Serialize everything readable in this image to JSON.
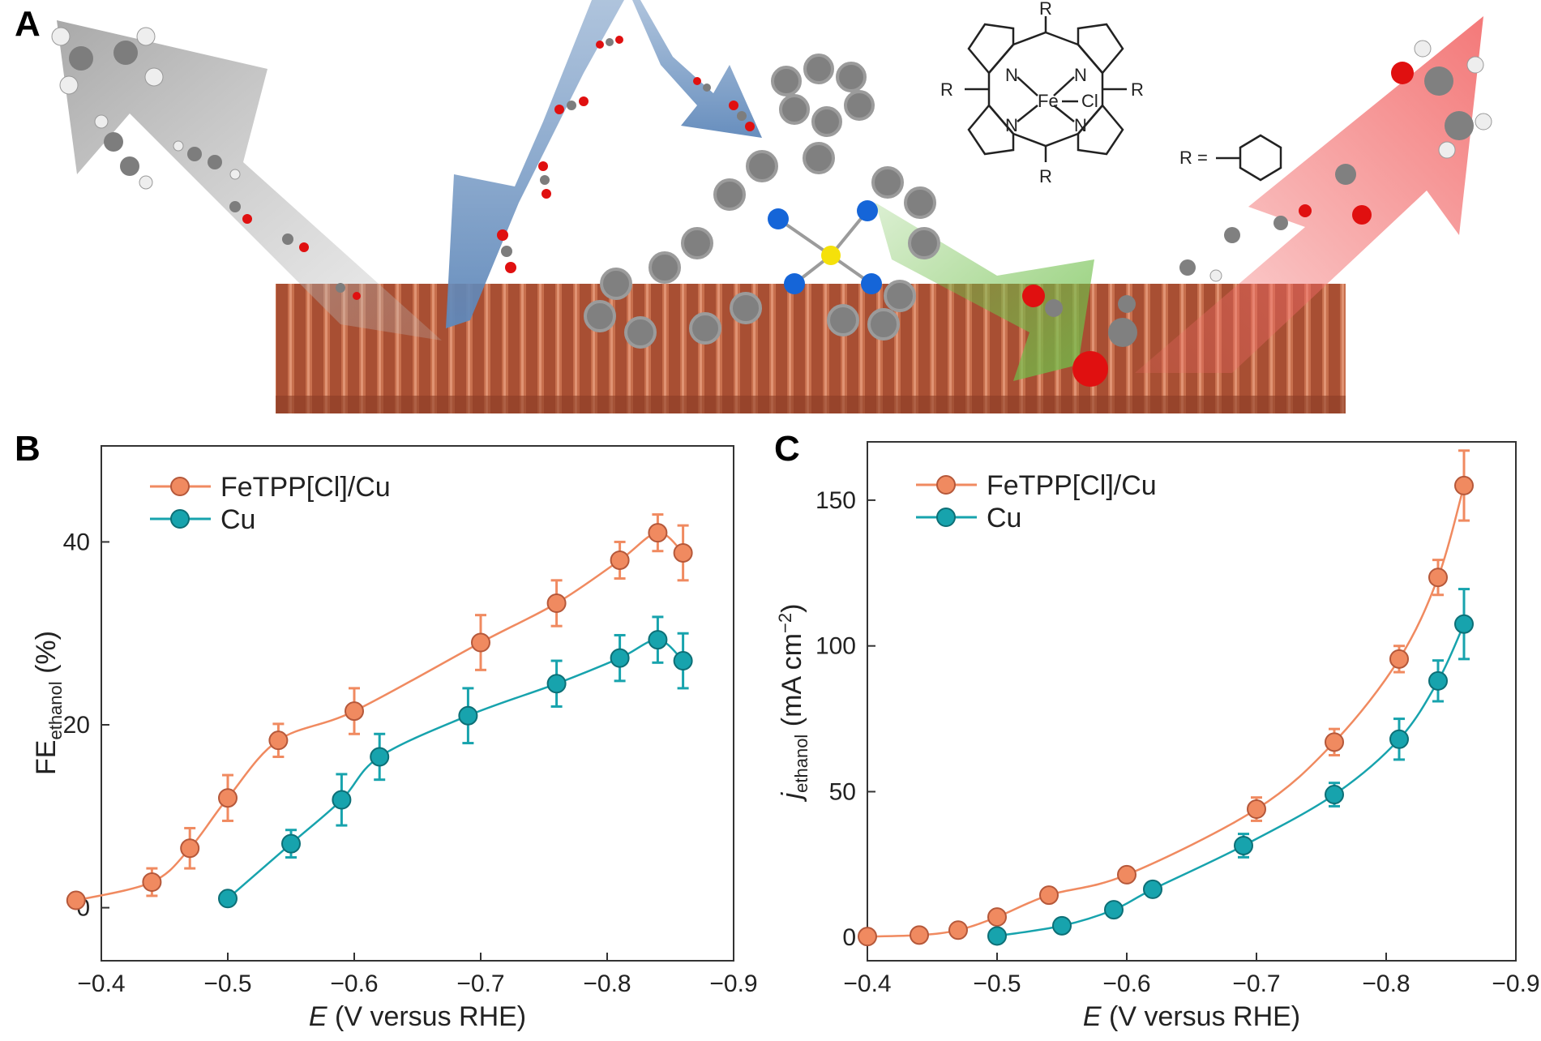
{
  "panel_a": {
    "label": "A",
    "structure_labels": {
      "r_top": "R",
      "r_left": "R",
      "r_right": "R",
      "r_bottom": "R",
      "n1": "N",
      "n2": "N",
      "n3": "N",
      "n4": "N",
      "metal": "Fe",
      "ligand": "Cl",
      "r_definition": "R ="
    },
    "colors": {
      "copper": "#b45a3c",
      "blue_arrow": "#6f95c2",
      "gray_arrow": "#a9a9a9",
      "green_arrow": "#7cbf4f",
      "red_arrow": "#f07070",
      "carbon": "#808080",
      "oxygen": "#e01010",
      "hydrogen": "#f2f2f2",
      "nitrogen": "#1565d8",
      "iron": "#f5e10a"
    }
  },
  "chart_data": [
    {
      "panel": "B",
      "type": "line",
      "title": "",
      "xlabel": "E (V versus RHE)",
      "ylabel": "FEethanol (%)",
      "x_ticks": [
        "−0.4",
        "−0.5",
        "−0.6",
        "−0.7",
        "−0.8",
        "−0.9"
      ],
      "y_ticks": [
        "0",
        "20",
        "40"
      ],
      "xlim": [
        -0.4,
        -0.9
      ],
      "ylim": [
        -5.8,
        50.5
      ],
      "x_tick_values": [
        -0.4,
        -0.5,
        -0.6,
        -0.7,
        -0.8,
        -0.9
      ],
      "y_tick_values": [
        0,
        20,
        40
      ],
      "legend_position": "top-left",
      "series": [
        {
          "name": "FeTPP[Cl]/Cu",
          "color": "#f08a60",
          "x": [
            -0.38,
            -0.44,
            -0.47,
            -0.5,
            -0.54,
            -0.6,
            -0.7,
            -0.76,
            -0.81,
            -0.84,
            -0.86
          ],
          "y": [
            0.8,
            2.8,
            6.5,
            12.0,
            18.3,
            21.5,
            29.0,
            33.3,
            38.0,
            41.0,
            38.8
          ],
          "err": [
            0.5,
            1.5,
            2.2,
            2.5,
            1.8,
            2.5,
            3.0,
            2.5,
            2.0,
            2.0,
            3.0
          ]
        },
        {
          "name": "Cu",
          "color": "#17a3ad",
          "x": [
            -0.5,
            -0.55,
            -0.59,
            -0.62,
            -0.69,
            -0.76,
            -0.81,
            -0.84,
            -0.86
          ],
          "y": [
            1.0,
            7.0,
            11.8,
            16.5,
            21.0,
            24.5,
            27.3,
            29.3,
            27.0
          ],
          "err": [
            0.6,
            1.5,
            2.8,
            2.5,
            3.0,
            2.5,
            2.5,
            2.5,
            3.0
          ]
        }
      ]
    },
    {
      "panel": "C",
      "type": "line",
      "title": "",
      "xlabel": "E (V versus RHE)",
      "ylabel": "jethanol (mA cm−2)",
      "x_ticks": [
        "−0.4",
        "−0.5",
        "−0.6",
        "−0.7",
        "−0.8",
        "−0.9"
      ],
      "y_ticks": [
        "0",
        "50",
        "100",
        "150"
      ],
      "xlim": [
        -0.4,
        -0.9
      ],
      "ylim": [
        -8,
        170
      ],
      "x_tick_values": [
        -0.4,
        -0.5,
        -0.6,
        -0.7,
        -0.8,
        -0.9
      ],
      "y_tick_values": [
        0,
        50,
        100,
        150
      ],
      "legend_position": "top-left",
      "series": [
        {
          "name": "FeTPP[Cl]/Cu",
          "color": "#f08a60",
          "x": [
            -0.4,
            -0.44,
            -0.47,
            -0.5,
            -0.54,
            -0.6,
            -0.7,
            -0.76,
            -0.81,
            -0.84,
            -0.86
          ],
          "y": [
            0.3,
            0.8,
            2.5,
            7.0,
            14.5,
            21.5,
            44.0,
            67.0,
            95.5,
            123.5,
            155.0
          ],
          "err": [
            0.3,
            0.5,
            1.0,
            1.0,
            1.5,
            2.0,
            4.0,
            4.5,
            4.5,
            6.0,
            12.0
          ]
        },
        {
          "name": "Cu",
          "color": "#17a3ad",
          "x": [
            -0.5,
            -0.55,
            -0.59,
            -0.62,
            -0.69,
            -0.76,
            -0.81,
            -0.84,
            -0.86
          ],
          "y": [
            0.5,
            4.0,
            9.5,
            16.5,
            31.5,
            49.0,
            68.0,
            88.0,
            107.5
          ],
          "err": [
            0.4,
            1.0,
            1.5,
            2.0,
            4.0,
            4.0,
            7.0,
            7.0,
            12.0
          ]
        }
      ]
    }
  ]
}
